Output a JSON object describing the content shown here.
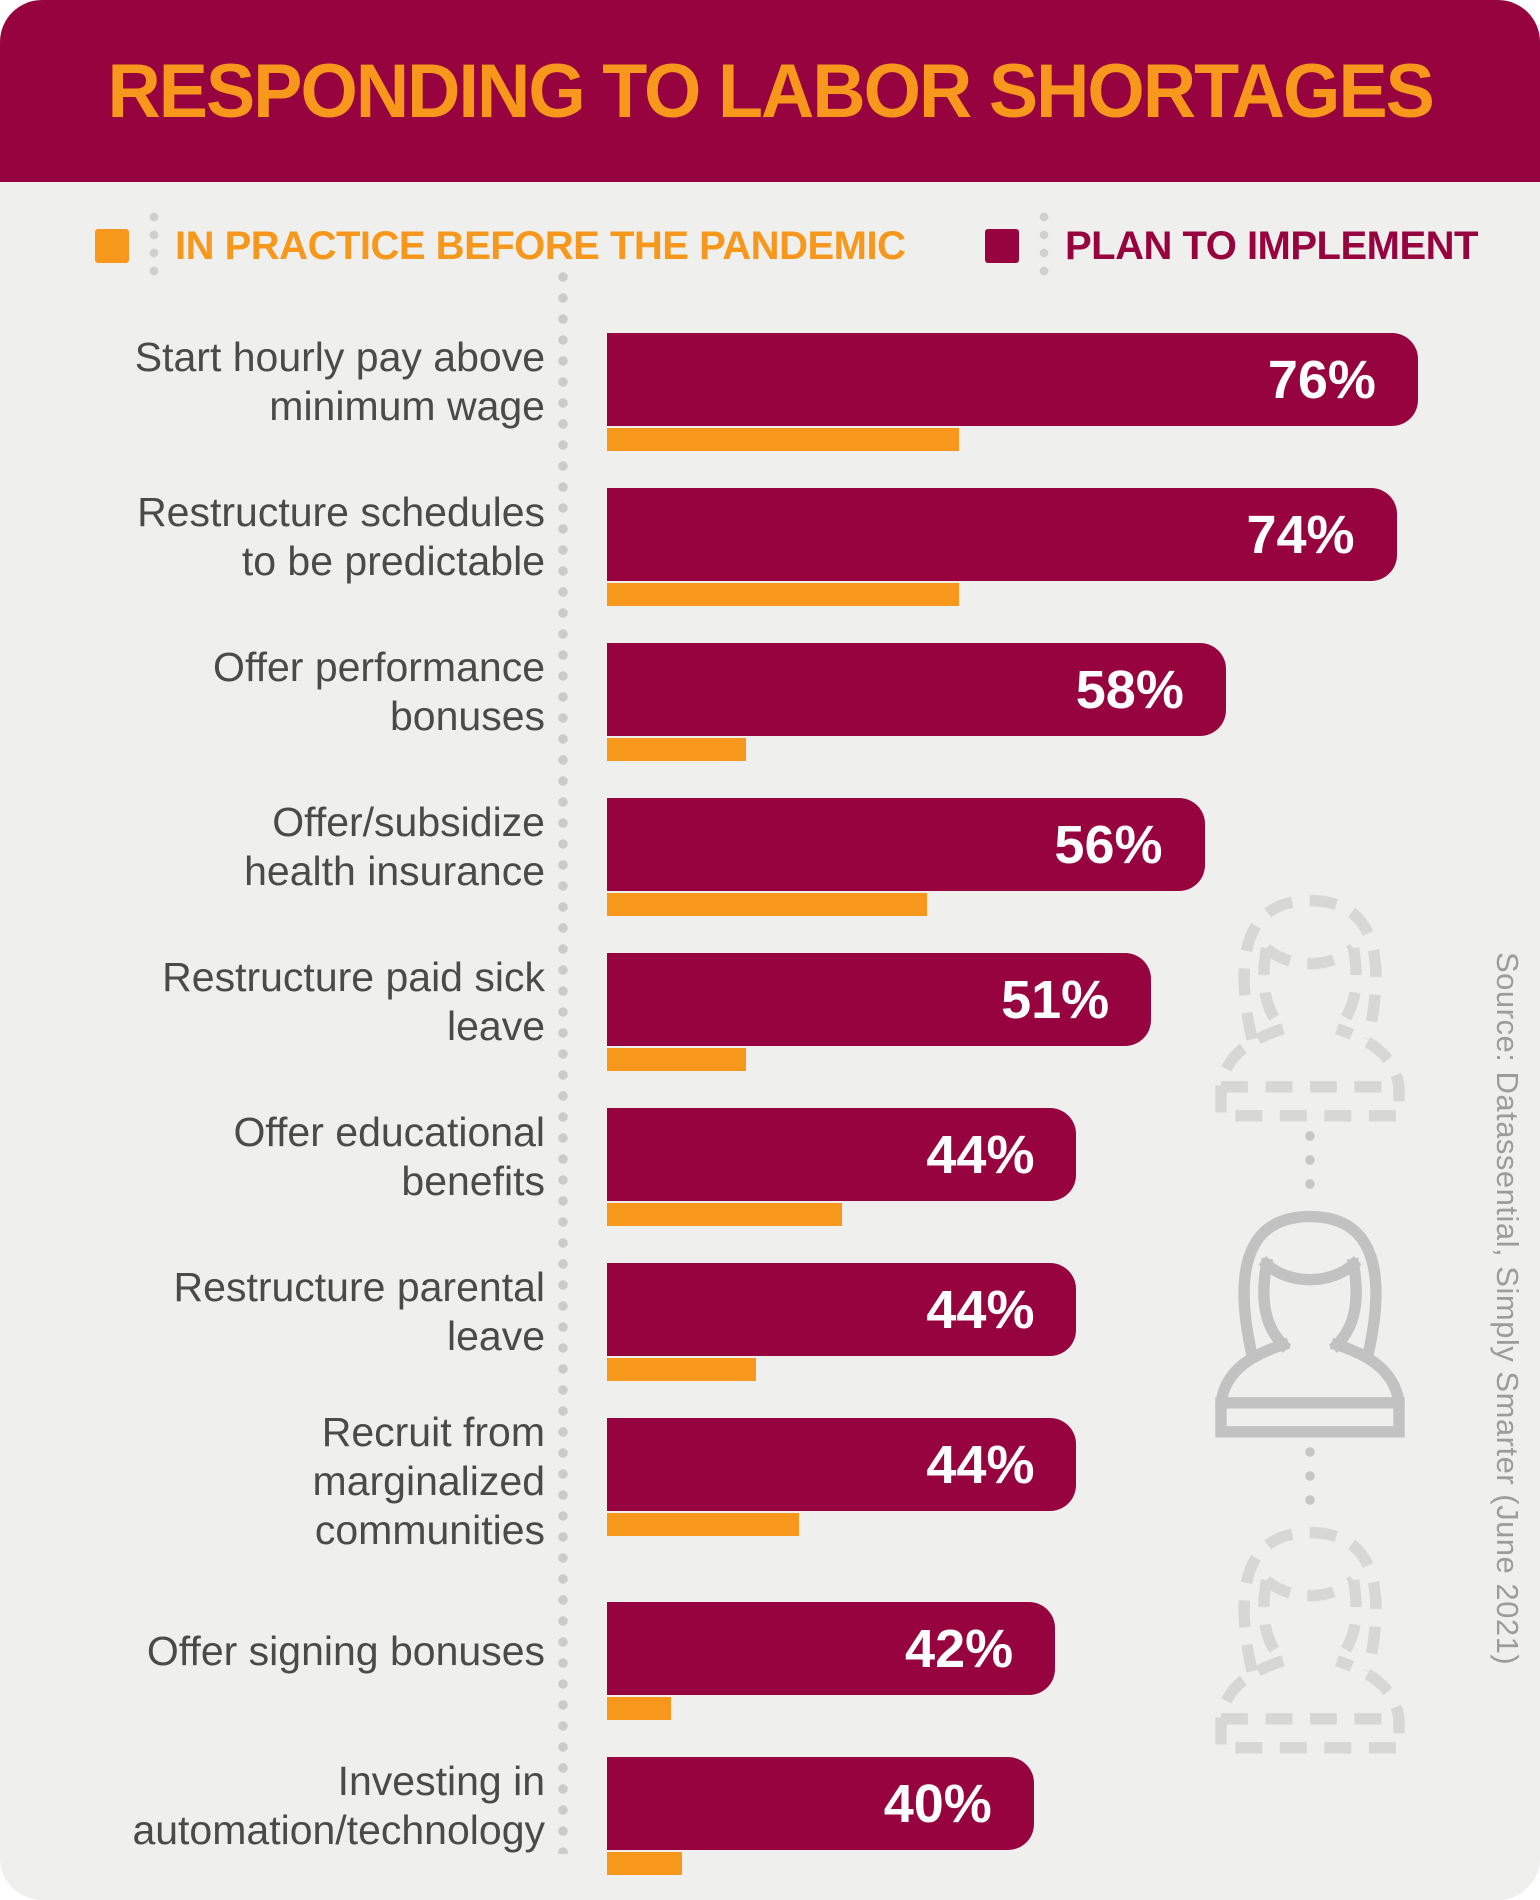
{
  "header": {
    "title": "RESPONDING TO LABOR SHORTAGES",
    "background": "#97033E",
    "title_color": "#F7981C"
  },
  "legend": {
    "items": [
      {
        "label": "IN PRACTICE BEFORE THE PANDEMIC",
        "color": "#F7981C"
      },
      {
        "label": "PLAN TO IMPLEMENT",
        "color": "#97033E"
      }
    ]
  },
  "chart_data": {
    "type": "bar",
    "orientation": "horizontal",
    "title": "RESPONDING TO LABOR SHORTAGES",
    "value_suffix": "%",
    "xlim": [
      0,
      100
    ],
    "grid": false,
    "legend_position": "top",
    "categories": [
      "Start hourly pay above\nminimum wage",
      "Restructure schedules\nto be predictable",
      "Offer performance bonuses",
      "Offer/subsidize\nhealth insurance",
      "Restructure paid sick leave",
      "Offer educational benefits",
      "Restructure parental leave",
      "Recruit from marginalized\ncommunities",
      "Offer signing bonuses",
      "Investing in\nautomation/technology"
    ],
    "series": [
      {
        "name": "PLAN TO IMPLEMENT",
        "color": "#97033E",
        "values": [
          76,
          74,
          58,
          56,
          51,
          44,
          44,
          44,
          42,
          40
        ],
        "value_labels_visible": true
      },
      {
        "name": "IN PRACTICE BEFORE THE PANDEMIC",
        "color": "#F7981C",
        "values": [
          33,
          33,
          13,
          30,
          13,
          22,
          14,
          18,
          6,
          7
        ],
        "value_labels_visible": false,
        "values_estimated_from_bar_lengths": true
      }
    ]
  },
  "source": {
    "text": "Source: Datassential, Simply Smarter (June 2021)",
    "color": "#9C9C9C"
  },
  "decorations": {
    "figures": [
      {
        "style": "dashed"
      },
      {
        "style": "solid"
      },
      {
        "style": "dashed"
      }
    ],
    "figure_name": "woman-bust",
    "solid_color": "#C2C2C2",
    "dashed_color": "#D7D7D6"
  },
  "colors": {
    "card_background": "#EFEFEE",
    "label_text": "#4A4A47",
    "dotted_line": "#CBCBCB"
  }
}
